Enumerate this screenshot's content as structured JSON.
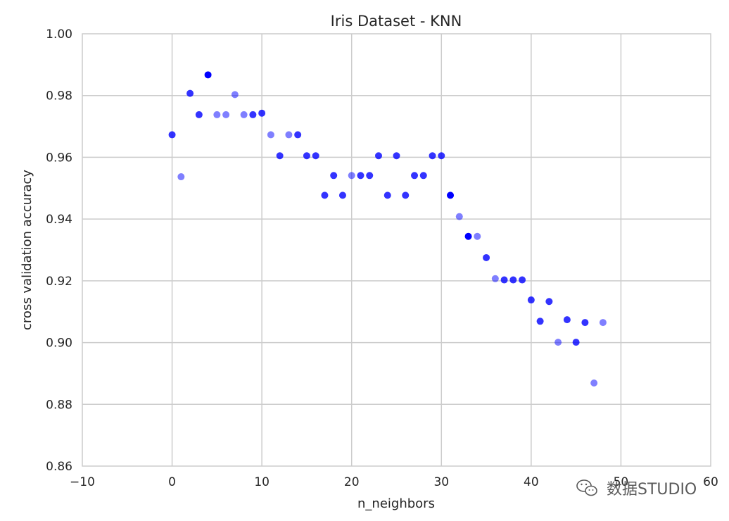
{
  "chart_data": {
    "type": "scatter",
    "title": "Iris Dataset - KNN",
    "xlabel": "n_neighbors",
    "ylabel": "cross validation accuracy",
    "xlim": [
      -10,
      60
    ],
    "ylim": [
      0.86,
      1.0
    ],
    "xticks": [
      -10,
      0,
      10,
      20,
      30,
      40,
      50,
      60
    ],
    "yticks": [
      0.86,
      0.88,
      0.9,
      0.92,
      0.94,
      0.96,
      0.98,
      1.0
    ],
    "xtick_labels": [
      "−10",
      "0",
      "10",
      "20",
      "30",
      "40",
      "50",
      "60"
    ],
    "ytick_labels": [
      "0.86",
      "0.88",
      "0.90",
      "0.92",
      "0.94",
      "0.96",
      "0.98",
      "1.00"
    ],
    "grid": true,
    "point_color": "#0000ff",
    "series": [
      {
        "x": [
          0,
          1,
          2,
          3,
          4,
          5,
          6,
          7,
          8,
          9,
          10,
          11,
          12,
          13,
          14,
          15,
          16,
          17,
          18,
          19,
          20,
          21,
          22,
          23,
          24,
          25,
          26,
          27,
          28,
          29,
          30,
          31,
          32,
          33,
          34,
          35,
          36,
          37,
          38,
          39,
          40,
          41,
          42,
          43,
          44,
          45,
          46,
          47,
          48
        ],
        "y": [
          0.9673,
          0.9537,
          0.9807,
          0.9738,
          0.9867,
          0.9738,
          0.9738,
          0.9803,
          0.9738,
          0.9738,
          0.9743,
          0.9673,
          0.9605,
          0.9673,
          0.9673,
          0.9605,
          0.9605,
          0.9477,
          0.9541,
          0.9477,
          0.9541,
          0.9541,
          0.9541,
          0.9605,
          0.9477,
          0.9605,
          0.9477,
          0.9541,
          0.9541,
          0.9605,
          0.9605,
          0.9477,
          0.9408,
          0.9344,
          0.9344,
          0.9275,
          0.9207,
          0.9203,
          0.9203,
          0.9203,
          0.9138,
          0.9069,
          0.9133,
          0.9001,
          0.9074,
          0.9001,
          0.9065,
          0.8869,
          0.9065
        ],
        "alpha": [
          0.8,
          0.5,
          0.8,
          0.8,
          1.0,
          0.5,
          0.5,
          0.5,
          0.5,
          0.8,
          0.8,
          0.5,
          0.8,
          0.5,
          0.8,
          0.8,
          0.8,
          0.8,
          0.8,
          0.8,
          0.5,
          0.8,
          0.8,
          0.8,
          0.8,
          0.8,
          0.8,
          0.8,
          0.8,
          0.8,
          0.8,
          1.0,
          0.5,
          1.0,
          0.5,
          0.8,
          0.5,
          0.8,
          0.8,
          0.8,
          0.8,
          0.8,
          0.8,
          0.5,
          0.8,
          0.8,
          0.8,
          0.5,
          0.5
        ]
      }
    ]
  },
  "watermark": {
    "text": "数据STUDIO",
    "icon": "wechat-icon"
  }
}
